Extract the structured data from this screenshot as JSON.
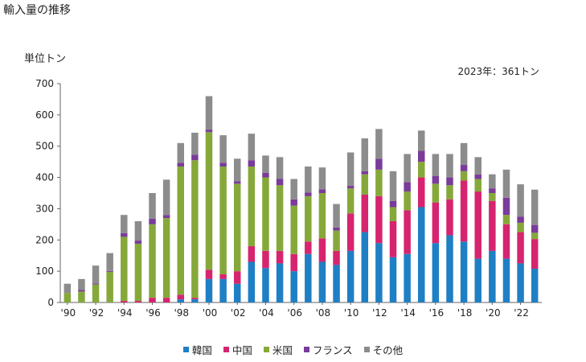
{
  "title": "輸入量の推移",
  "unit_label": "単位トン",
  "note": "2023年：361トン",
  "chart_data": {
    "type": "bar",
    "stacked": true,
    "y_ticks": [
      "0",
      "100",
      "200",
      "300",
      "400",
      "500",
      "600",
      "700"
    ],
    "ylim": [
      0,
      700
    ],
    "x_tick_labels": [
      "'90",
      "'92",
      "'94",
      "'96",
      "'98",
      "'00",
      "'02",
      "'04",
      "'06",
      "'08",
      "'10",
      "'12",
      "'14",
      "'16",
      "'18",
      "'20",
      "'22"
    ],
    "categories": [
      "1990",
      "1991",
      "1992",
      "1993",
      "1994",
      "1995",
      "1996",
      "1997",
      "1998",
      "1999",
      "2000",
      "2001",
      "2002",
      "2003",
      "2004",
      "2005",
      "2006",
      "2007",
      "2008",
      "2009",
      "2010",
      "2011",
      "2012",
      "2013",
      "2014",
      "2015",
      "2016",
      "2017",
      "2018",
      "2019",
      "2020",
      "2021",
      "2022",
      "2023"
    ],
    "series": [
      {
        "name": "韓国",
        "color": "#1f7fc4",
        "values": [
          0,
          0,
          0,
          0,
          0,
          0,
          0,
          0,
          10,
          10,
          75,
          75,
          60,
          130,
          110,
          125,
          100,
          155,
          130,
          120,
          165,
          225,
          190,
          145,
          155,
          305,
          190,
          215,
          195,
          140,
          165,
          140,
          125,
          108
        ]
      },
      {
        "name": "中国",
        "color": "#d6246e",
        "values": [
          0,
          0,
          0,
          0,
          5,
          5,
          15,
          15,
          15,
          5,
          30,
          15,
          40,
          50,
          55,
          40,
          55,
          40,
          75,
          45,
          120,
          120,
          150,
          115,
          140,
          95,
          130,
          115,
          195,
          215,
          160,
          110,
          100,
          95
        ]
      },
      {
        "name": "米国",
        "color": "#86a83a",
        "values": [
          30,
          35,
          58,
          98,
          205,
          183,
          235,
          255,
          410,
          440,
          440,
          345,
          280,
          255,
          235,
          210,
          155,
          145,
          145,
          65,
          80,
          65,
          85,
          45,
          60,
          50,
          60,
          45,
          30,
          40,
          25,
          30,
          30,
          20
        ]
      },
      {
        "name": "フランス",
        "color": "#7a3b9a",
        "values": [
          0,
          5,
          3,
          3,
          12,
          10,
          18,
          10,
          12,
          18,
          8,
          12,
          8,
          20,
          15,
          20,
          20,
          12,
          12,
          10,
          8,
          10,
          35,
          20,
          30,
          35,
          25,
          25,
          20,
          15,
          15,
          55,
          20,
          25
        ]
      },
      {
        "name": "その他",
        "color": "#8c8c8c",
        "values": [
          30,
          35,
          57,
          57,
          58,
          62,
          82,
          113,
          63,
          70,
          107,
          88,
          72,
          85,
          55,
          70,
          65,
          83,
          70,
          75,
          107,
          105,
          95,
          95,
          90,
          65,
          70,
          75,
          70,
          55,
          45,
          90,
          103,
          113
        ]
      }
    ]
  }
}
